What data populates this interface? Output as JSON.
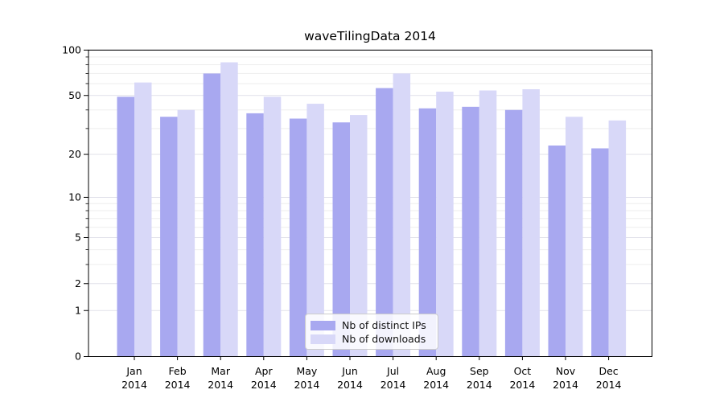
{
  "figure": {
    "title": "waveTilingData 2014"
  },
  "chart_data": {
    "type": "bar",
    "title": "waveTilingData 2014",
    "scale": "log1p",
    "categories": [
      "Jan",
      "Feb",
      "Mar",
      "Apr",
      "May",
      "Jun",
      "Jul",
      "Aug",
      "Sep",
      "Oct",
      "Nov",
      "Dec"
    ],
    "year_label": "2014",
    "series": [
      {
        "name": "Nb of distinct IPs",
        "color": "#a8a8f0",
        "values": [
          49,
          36,
          70,
          38,
          35,
          33,
          56,
          41,
          42,
          40,
          23,
          22
        ]
      },
      {
        "name": "Nb of downloads",
        "color": "#d8d8f8",
        "values": [
          61,
          40,
          83,
          49,
          44,
          37,
          70,
          53,
          54,
          55,
          36,
          34
        ]
      }
    ],
    "yticks_major": [
      0,
      1,
      2,
      5,
      10,
      20,
      50,
      100
    ],
    "yticks_minor": [
      3,
      4,
      6,
      7,
      8,
      9,
      30,
      40,
      60,
      70,
      80,
      90
    ],
    "ylim": [
      0,
      100
    ],
    "grid": true,
    "legend_position": "lower center",
    "colors": {
      "axis": "#000000",
      "text": "#000000",
      "grid_major": "#e1e1ea",
      "grid_minor": "#ededed",
      "background": "#ffffff"
    }
  }
}
